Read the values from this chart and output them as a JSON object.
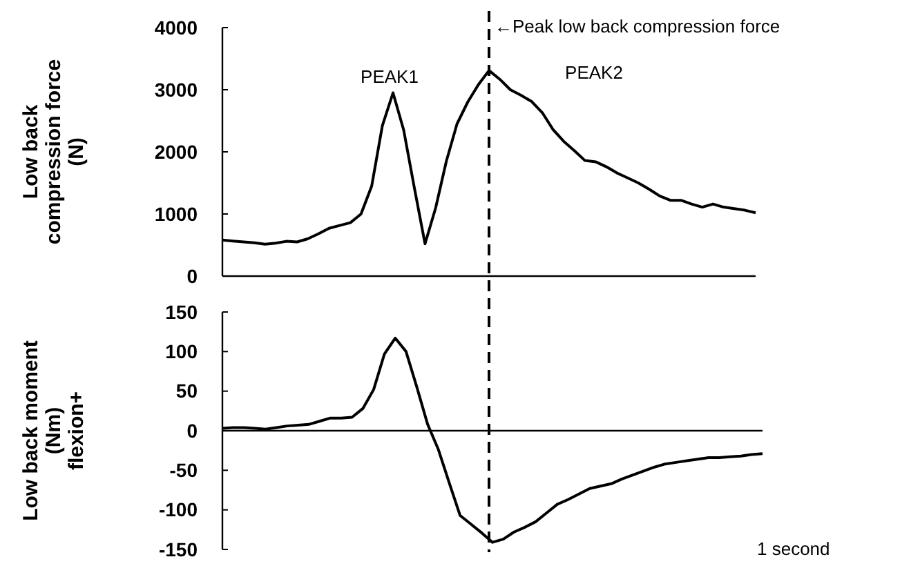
{
  "chart_data": [
    {
      "type": "line",
      "ylabel": "Low back\ncompression force\n(N)",
      "categories": [
        null,
        null,
        null,
        null,
        null,
        null,
        null,
        null,
        null,
        null,
        null,
        null,
        null,
        null,
        null,
        null,
        null,
        null,
        null,
        null,
        null,
        null,
        null,
        null,
        null,
        null,
        null,
        null,
        null,
        null,
        null,
        null,
        null,
        null,
        null,
        null,
        null,
        null,
        null,
        null,
        null,
        null,
        null,
        null,
        null,
        null,
        null,
        null,
        null,
        null,
        null
      ],
      "ylim": [
        0,
        4000
      ],
      "yticks": [
        0,
        1000,
        2000,
        3000,
        4000
      ],
      "tick_labels": "y",
      "series": [
        {
          "color": "#000000",
          "values": [
            580,
            565,
            550,
            535,
            515,
            530,
            560,
            550,
            600,
            680,
            770,
            815,
            860,
            1000,
            1450,
            2420,
            2950,
            2350,
            1420,
            520,
            1100,
            1850,
            2450,
            2800,
            3080,
            3310,
            3170,
            3000,
            2910,
            2810,
            2630,
            2360,
            2170,
            2020,
            1860,
            1840,
            1760,
            1660,
            1580,
            1500,
            1400,
            1290,
            1220,
            1220,
            1160,
            1110,
            1160,
            1110,
            1085,
            1060,
            1020
          ]
        }
      ],
      "ref_lines": [
        {
          "axis": "x",
          "label": "←Peak low back compression force",
          "line_style": "dashed"
        }
      ],
      "annotations": [
        "PEAK1",
        "PEAK2"
      ]
    },
    {
      "type": "line",
      "ylabel": "Low back moment\n(Nm)\nflexion+",
      "categories": [
        null,
        null,
        null,
        null,
        null,
        null,
        null,
        null,
        null,
        null,
        null,
        null,
        null,
        null,
        null,
        null,
        null,
        null,
        null,
        null,
        null,
        null,
        null,
        null,
        null,
        null,
        null,
        null,
        null,
        null,
        null,
        null,
        null,
        null,
        null,
        null,
        null,
        null,
        null,
        null,
        null,
        null,
        null,
        null,
        null,
        null,
        null,
        null,
        null,
        null,
        null
      ],
      "ylim": [
        -150,
        150
      ],
      "yticks": [
        -150,
        -100,
        -50,
        0,
        50,
        100,
        150
      ],
      "tick_labels": "y",
      "series": [
        {
          "color": "#000000",
          "values": [
            3,
            4,
            4,
            3,
            2,
            4,
            6,
            7,
            8,
            12,
            16,
            16,
            17,
            28,
            52,
            97,
            117,
            100,
            55,
            8,
            -24,
            -66,
            -107,
            -118,
            -129,
            -141,
            -137,
            -128,
            -122,
            -115,
            -104,
            -93,
            -87,
            -80,
            -73,
            -70,
            -67,
            -61,
            -56,
            -51,
            -46,
            -42,
            -40,
            -38,
            -36,
            -34,
            -34,
            -33,
            -32,
            -30,
            -29
          ]
        }
      ],
      "annotations": [
        "1 second"
      ]
    }
  ]
}
